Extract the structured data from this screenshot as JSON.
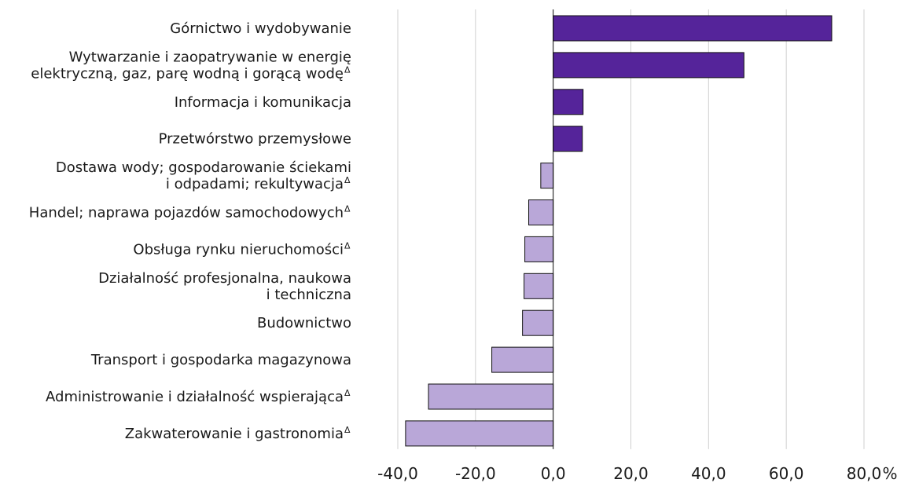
{
  "chart_data": {
    "type": "barh",
    "categories": [
      [
        "Górnictwo i wydobywanie"
      ],
      [
        "Wytwarzanie i zaopatrywanie w energię",
        "elektryczną, gaz, parę wodną i gorącą wodę"
      ],
      [
        "Informacja i komunikacja"
      ],
      [
        "Przetwórstwo przemysłowe"
      ],
      [
        "Dostawa wody; gospodarowanie ściekami",
        "i odpadami; rekultywacja"
      ],
      [
        "Handel; naprawa pojazdów samochodowych"
      ],
      [
        "Obsługa rynku nieruchomości"
      ],
      [
        "Działalność profesjonalna, naukowa",
        "i techniczna"
      ],
      [
        "Budownictwo"
      ],
      [
        "Transport i gospodarka magazynowa"
      ],
      [
        "Administrowanie i działalność wspierająca"
      ],
      [
        "Zakwaterowanie i gastronomia"
      ]
    ],
    "marker": "Δ",
    "marked": [
      false,
      true,
      false,
      false,
      true,
      true,
      true,
      false,
      false,
      false,
      true,
      true
    ],
    "values": [
      71.7,
      49.1,
      7.7,
      7.5,
      -3.2,
      -6.3,
      -7.3,
      -7.5,
      -7.9,
      -15.8,
      -32.1,
      -38.0
    ],
    "colors": [
      "#55249a",
      "#55249a",
      "#55249a",
      "#55249a",
      "#b9a7d8",
      "#b9a7d8",
      "#b9a7d8",
      "#b9a7d8",
      "#b9a7d8",
      "#b9a7d8",
      "#b9a7d8",
      "#b9a7d8"
    ],
    "xlabel": "%",
    "xlim": [
      -40,
      80
    ],
    "xticks": [
      {
        "value": -40,
        "label": "-40,0"
      },
      {
        "value": -20,
        "label": "-20,0"
      },
      {
        "value": 0,
        "label": "0,0"
      },
      {
        "value": 20,
        "label": "20,0"
      },
      {
        "value": 40,
        "label": "40,0"
      },
      {
        "value": 60,
        "label": "60,0"
      },
      {
        "value": 80,
        "label": "80,0"
      }
    ],
    "grid": true
  }
}
